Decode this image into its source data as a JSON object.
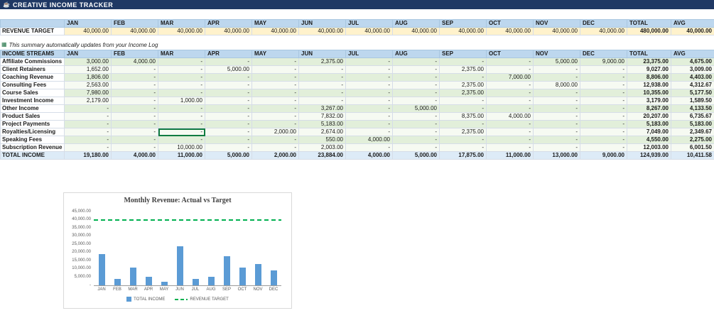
{
  "app": {
    "title": "CREATIVE INCOME TRACKER",
    "icon_glyph": "☕"
  },
  "months": [
    "JAN",
    "FEB",
    "MAR",
    "APR",
    "MAY",
    "JUN",
    "JUL",
    "AUG",
    "SEP",
    "OCT",
    "NOV",
    "DEC"
  ],
  "total_label": "TOTAL",
  "avg_label": "AVG",
  "revenue_target": {
    "label": "REVENUE TARGET",
    "values": [
      "40,000.00",
      "40,000.00",
      "40,000.00",
      "40,000.00",
      "40,000.00",
      "40,000.00",
      "40,000.00",
      "40,000.00",
      "40,000.00",
      "40,000.00",
      "40,000.00",
      "40,000.00"
    ],
    "total": "480,000.00",
    "avg": "40,000.00"
  },
  "note": {
    "icon_glyph": "▦",
    "text": "This summary automatically updates from your Income Log"
  },
  "income_streams": {
    "header": "INCOME STREAMS",
    "rows": [
      {
        "label": "Affiliate Commissions",
        "values": [
          "3,000.00",
          "4,000.00",
          "-",
          "-",
          "-",
          "2,375.00",
          "-",
          "-",
          "-",
          "-",
          "5,000.00",
          "9,000.00"
        ],
        "total": "23,375.00",
        "avg": "4,675.00"
      },
      {
        "label": "Client Retainers",
        "values": [
          "1,652.00",
          "-",
          "-",
          "5,000.00",
          "-",
          "-",
          "-",
          "-",
          "2,375.00",
          "-",
          "-",
          "-"
        ],
        "total": "9,027.00",
        "avg": "3,009.00"
      },
      {
        "label": "Coaching Revenue",
        "values": [
          "1,806.00",
          "-",
          "-",
          "-",
          "-",
          "-",
          "-",
          "-",
          "-",
          "7,000.00",
          "-",
          "-"
        ],
        "total": "8,806.00",
        "avg": "4,403.00"
      },
      {
        "label": "Consulting Fees",
        "values": [
          "2,563.00",
          "-",
          "-",
          "-",
          "-",
          "-",
          "-",
          "-",
          "2,375.00",
          "-",
          "8,000.00",
          "-"
        ],
        "total": "12,938.00",
        "avg": "4,312.67"
      },
      {
        "label": "Course Sales",
        "values": [
          "7,980.00",
          "-",
          "-",
          "-",
          "-",
          "-",
          "-",
          "-",
          "2,375.00",
          "-",
          "-",
          "-"
        ],
        "total": "10,355.00",
        "avg": "5,177.50"
      },
      {
        "label": "Investment Income",
        "values": [
          "2,179.00",
          "-",
          "1,000.00",
          "-",
          "-",
          "-",
          "-",
          "-",
          "-",
          "-",
          "-",
          "-"
        ],
        "total": "3,179.00",
        "avg": "1,589.50"
      },
      {
        "label": "Other Income",
        "values": [
          "-",
          "-",
          "-",
          "-",
          "-",
          "3,267.00",
          "-",
          "5,000.00",
          "-",
          "-",
          "-",
          "-"
        ],
        "total": "8,267.00",
        "avg": "4,133.50"
      },
      {
        "label": "Product Sales",
        "values": [
          "-",
          "-",
          "-",
          "-",
          "-",
          "7,832.00",
          "-",
          "-",
          "8,375.00",
          "4,000.00",
          "-",
          "-"
        ],
        "total": "20,207.00",
        "avg": "6,735.67"
      },
      {
        "label": "Project Payments",
        "values": [
          "-",
          "-",
          "-",
          "-",
          "-",
          "5,183.00",
          "-",
          "-",
          "-",
          "-",
          "-",
          "-"
        ],
        "total": "5,183.00",
        "avg": "5,183.00"
      },
      {
        "label": "Royalties/Licensing",
        "values": [
          "-",
          "-",
          "-",
          "-",
          "2,000.00",
          "2,674.00",
          "-",
          "-",
          "2,375.00",
          "-",
          "-",
          "-"
        ],
        "total": "7,049.00",
        "avg": "2,349.67"
      },
      {
        "label": "Speaking Fees",
        "values": [
          "-",
          "-",
          "-",
          "-",
          "-",
          "550.00",
          "4,000.00",
          "-",
          "-",
          "-",
          "-",
          "-"
        ],
        "total": "4,550.00",
        "avg": "2,275.00"
      },
      {
        "label": "Subscription Revenue",
        "values": [
          "-",
          "-",
          "10,000.00",
          "-",
          "-",
          "2,003.00",
          "-",
          "-",
          "-",
          "-",
          "-",
          "-"
        ],
        "total": "12,003.00",
        "avg": "6,001.50"
      }
    ],
    "total_row": {
      "label": "TOTAL INCOME",
      "values": [
        "19,180.00",
        "4,000.00",
        "11,000.00",
        "5,000.00",
        "2,000.00",
        "23,884.00",
        "4,000.00",
        "5,000.00",
        "17,875.00",
        "11,000.00",
        "13,000.00",
        "9,000.00"
      ],
      "total": "124,939.00",
      "avg": "10,411.58"
    }
  },
  "selection": {
    "row": "Royalties/Licensing",
    "month": "MAR",
    "value": "-"
  },
  "colors": {
    "titlebar": "#1F3864",
    "header_band": "#BDD7EE",
    "target_fill": "#FFF2CC",
    "stream_fill": "#E2EFDA",
    "total_row_fill": "#DDEBF7",
    "selection_border": "#107C41",
    "bar": "#5B9BD5",
    "target_line": "#00B050"
  },
  "chart_data": {
    "type": "bar",
    "title": "Monthly Revenue: Actual vs Target",
    "categories": [
      "JAN",
      "FEB",
      "MAR",
      "APR",
      "MAY",
      "JUN",
      "JUL",
      "AUG",
      "SEP",
      "OCT",
      "NOV",
      "DEC"
    ],
    "series": [
      {
        "name": "TOTAL INCOME",
        "type": "bar",
        "color": "#5B9BD5",
        "values": [
          19180,
          4000,
          11000,
          5000,
          2000,
          23884,
          4000,
          5000,
          17875,
          11000,
          13000,
          9000
        ]
      },
      {
        "name": "REVENUE TARGET",
        "type": "dashed-line",
        "color": "#00B050",
        "values": [
          40000,
          40000,
          40000,
          40000,
          40000,
          40000,
          40000,
          40000,
          40000,
          40000,
          40000,
          40000
        ]
      }
    ],
    "xlabel": "",
    "ylabel": "",
    "ylim": [
      0,
      45000
    ],
    "ytick_step": 5000,
    "ytick_labels_top_to_bottom": [
      "45,000.00",
      "40,000.00",
      "35,000.00",
      "30,000.00",
      "25,000.00",
      "20,000.00",
      "15,000.00",
      "10,000.00",
      "5,000.00",
      "-"
    ],
    "gridlines": false,
    "legend_position": "bottom"
  }
}
